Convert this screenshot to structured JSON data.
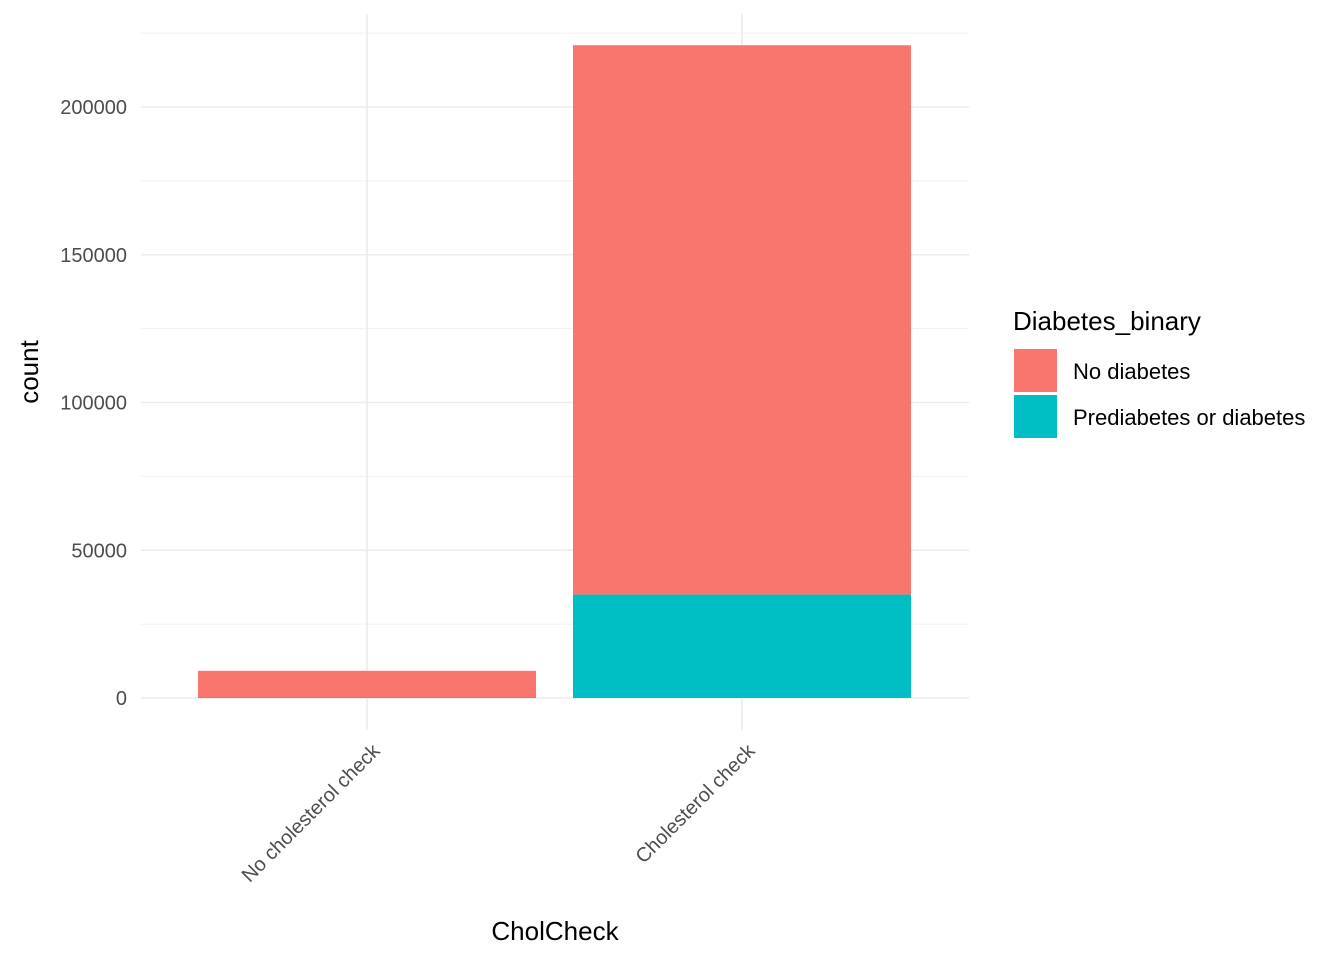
{
  "chart_data": {
    "type": "bar",
    "stacked": true,
    "xlabel": "CholCheck",
    "ylabel": "count",
    "categories": [
      "No cholesterol check",
      "Cholesterol check"
    ],
    "series": [
      {
        "name": "No diabetes",
        "values": [
          8900,
          185900
        ],
        "color": "#F8766D"
      },
      {
        "name": "Prediabetes or diabetes",
        "values": [
          300,
          35000
        ],
        "color": "#00BFC4"
      }
    ],
    "ylim": [
      0,
      220000
    ],
    "yticks": [
      0,
      50000,
      100000,
      150000,
      200000
    ],
    "ytick_labels": [
      "0",
      "50000",
      "100000",
      "150000",
      "200000"
    ],
    "grid": true,
    "legend": {
      "title": "Diabetes_binary",
      "position": "right"
    }
  }
}
